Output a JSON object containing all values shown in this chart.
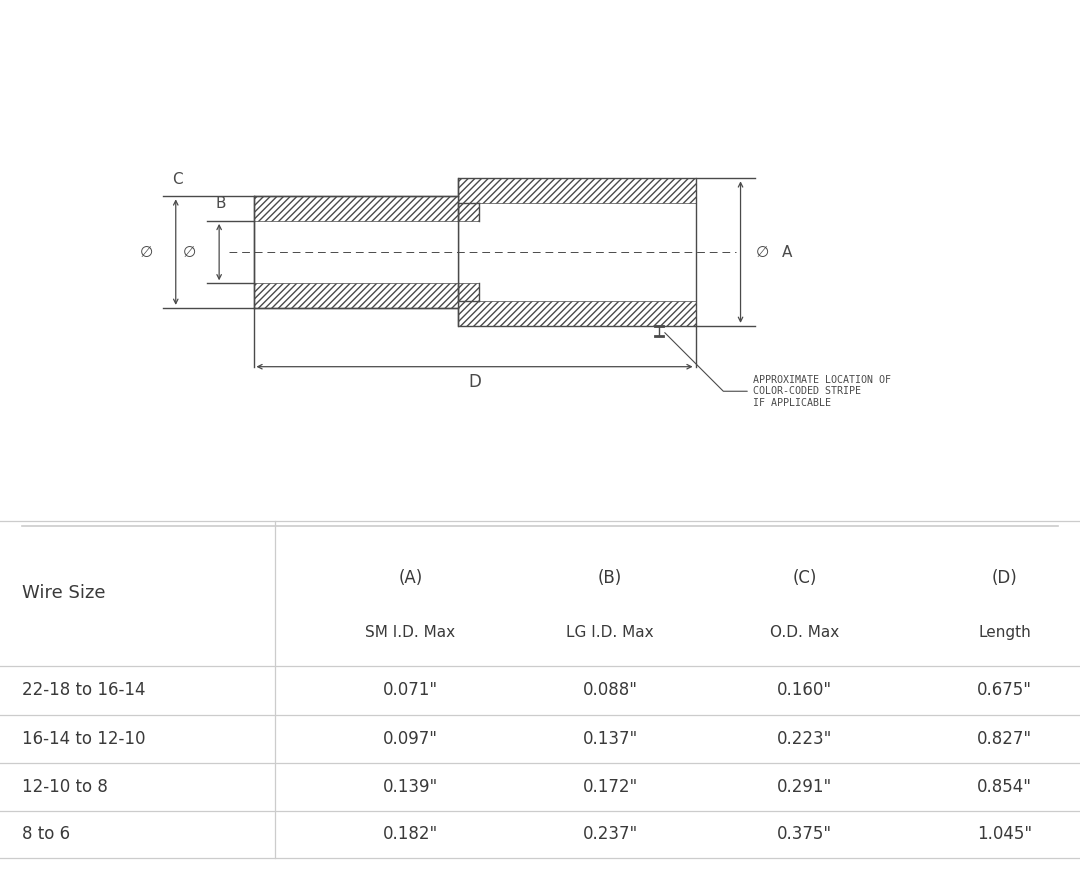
{
  "bg_color": "#ffffff",
  "table_header_row1": [
    "Wire Size",
    "(A)",
    "(B)",
    "(C)",
    "(D)"
  ],
  "table_header_row2": [
    "",
    "SM I.D. Max",
    "LG I.D. Max",
    "O.D. Max",
    "Length"
  ],
  "table_rows": [
    [
      "22-18 to 16-14",
      "0.071\"",
      "0.088\"",
      "0.160\"",
      "0.675\""
    ],
    [
      "16-14 to 12-10",
      "0.097\"",
      "0.137\"",
      "0.223\"",
      "0.827\""
    ],
    [
      "12-10 to 8",
      "0.139\"",
      "0.172\"",
      "0.291\"",
      "0.854\""
    ],
    [
      "8 to 6",
      "0.182\"",
      "0.237\"",
      "0.375\"",
      "1.045\""
    ]
  ],
  "annotation_text": "APPROXIMATE LOCATION OF\nCOLOR-CODED STRIPE\nIF APPLICABLE",
  "line_color": "#4a4a4a",
  "text_color": "#3a3a3a",
  "table_line_color": "#cccccc",
  "hatch_density": "/////"
}
